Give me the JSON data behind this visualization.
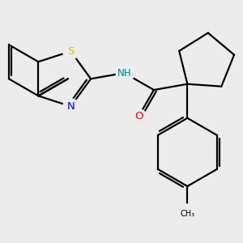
{
  "background_color": "#ececec",
  "atom_colors": {
    "S": "#cccc00",
    "N": "#0000ff",
    "O": "#ff0000",
    "NH": "#008888",
    "C": "#000000"
  },
  "bond_color": "#000000",
  "bond_width": 1.6,
  "figsize": [
    3.0,
    3.0
  ],
  "dpi": 100,
  "xlim": [
    -1.5,
    5.5
  ],
  "ylim": [
    -3.5,
    3.0
  ]
}
